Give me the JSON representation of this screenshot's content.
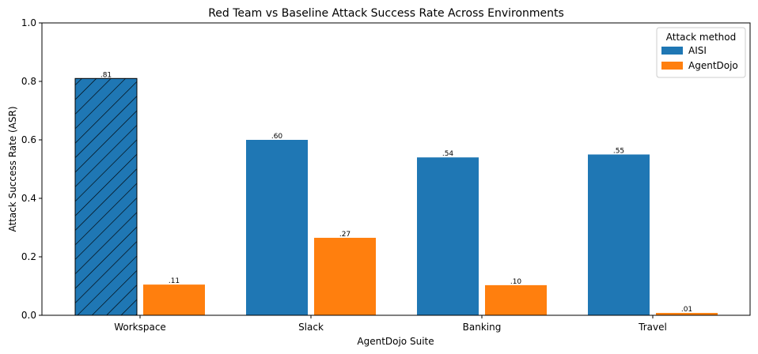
{
  "chart_data": {
    "type": "bar",
    "title": "Red Team vs Baseline Attack Success Rate Across Environments",
    "xlabel": "AgentDojo Suite",
    "ylabel": "Attack Success Rate (ASR)",
    "ylim": [
      0,
      1.0
    ],
    "yticks": [
      0.0,
      0.2,
      0.4,
      0.6,
      0.8,
      1.0
    ],
    "ytick_labels": [
      "0.0",
      "0.2",
      "0.4",
      "0.6",
      "0.8",
      "1.0"
    ],
    "categories": [
      "Workspace",
      "Slack",
      "Banking",
      "Travel"
    ],
    "grid": false,
    "legend": {
      "title": "Attack method",
      "placement": "top-right"
    },
    "series": [
      {
        "name": "AISI",
        "color": "#1f77b4",
        "values": [
          0.81,
          0.6,
          0.54,
          0.55
        ],
        "labels": [
          ".81",
          ".60",
          ".54",
          ".55"
        ],
        "hatched": [
          true,
          false,
          false,
          false
        ]
      },
      {
        "name": "AgentDojo",
        "color": "#ff7f0e",
        "values": [
          0.105,
          0.265,
          0.103,
          0.008
        ],
        "labels": [
          ".11",
          ".27",
          ".10",
          ".01"
        ],
        "hatched": [
          false,
          false,
          false,
          false
        ]
      }
    ]
  }
}
